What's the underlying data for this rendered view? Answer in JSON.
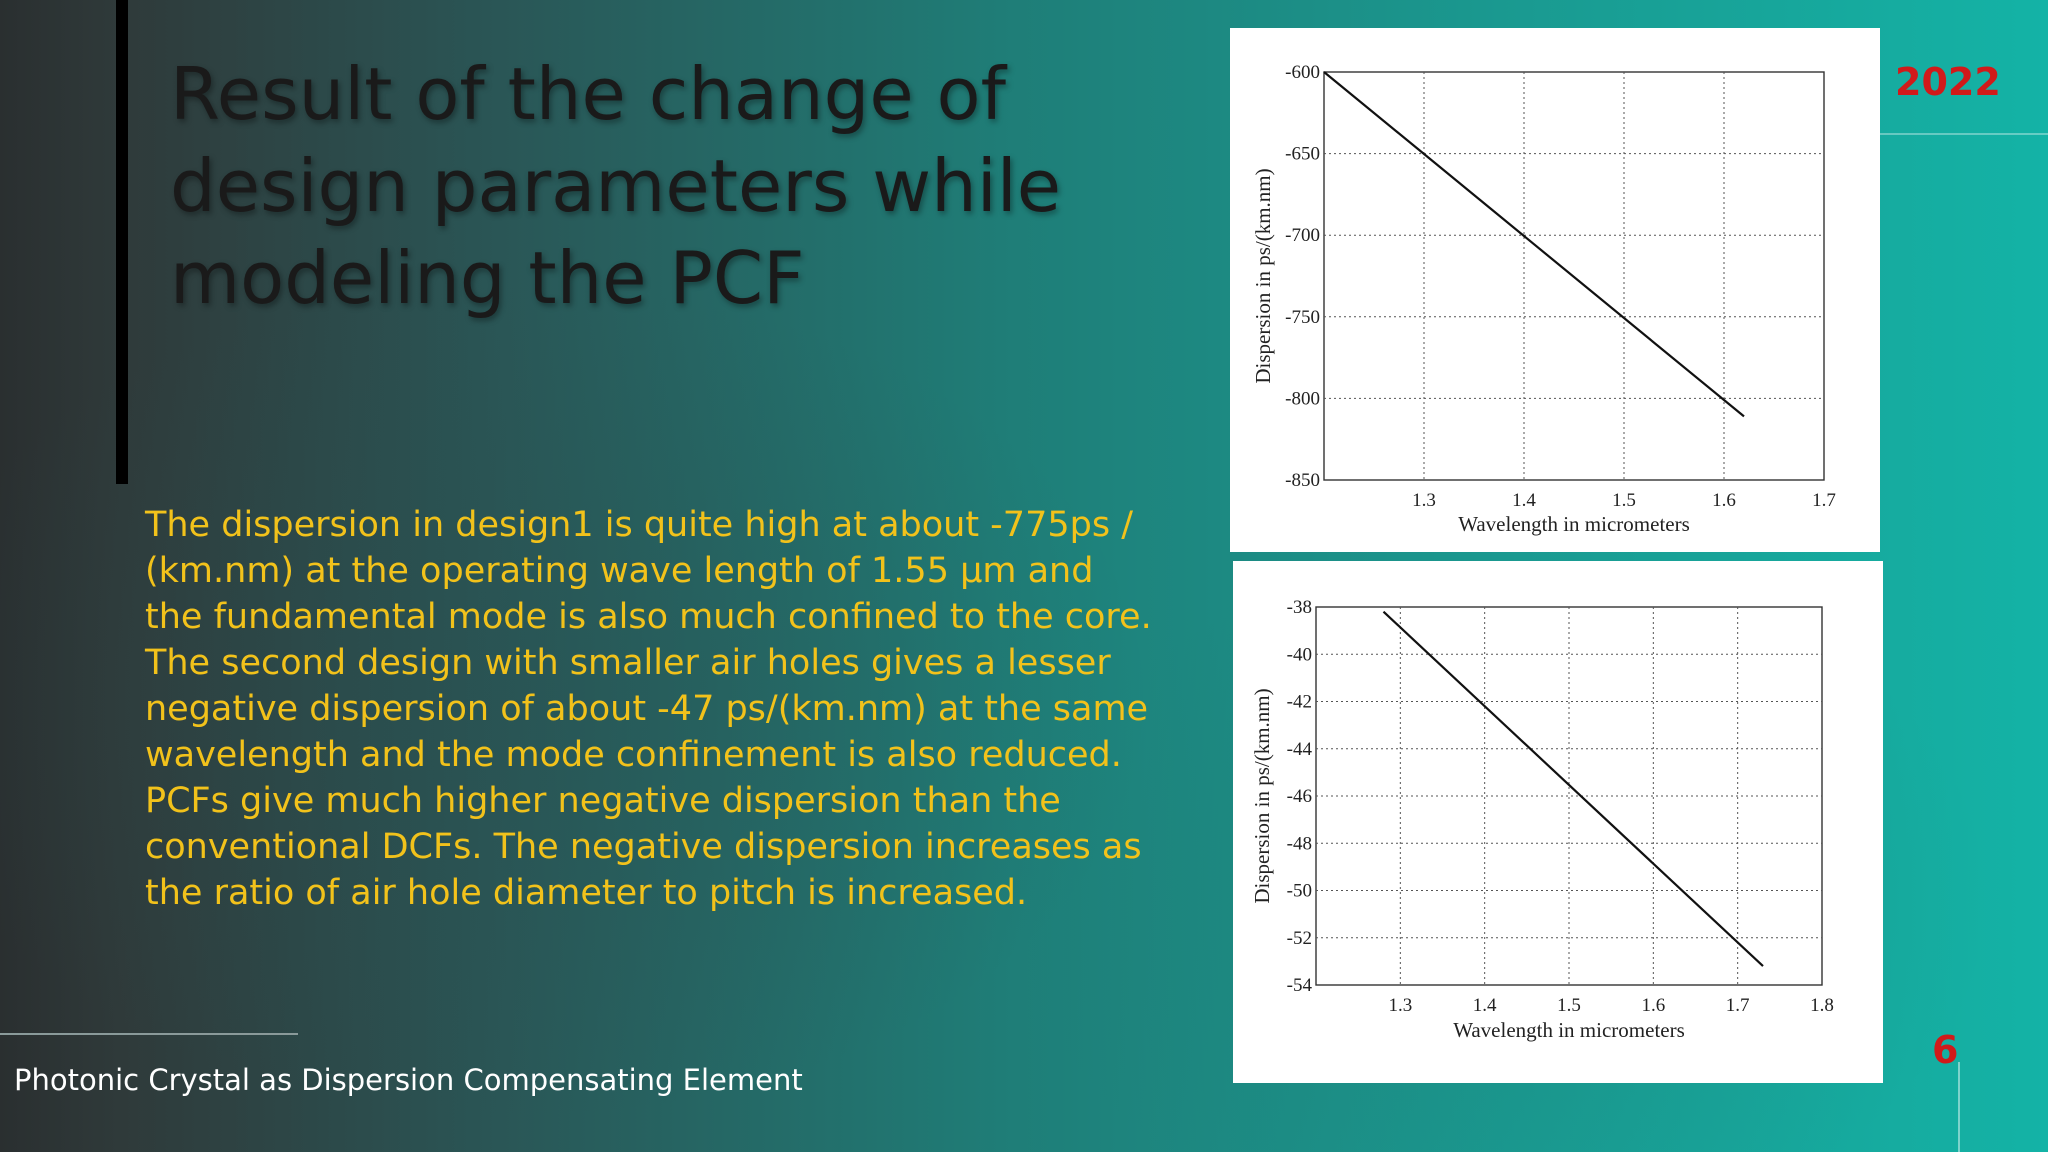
{
  "slide": {
    "title": "Result of the change of design parameters while modeling the PCF",
    "body": "The dispersion in design1 is quite high at about -775ps / (km.nm) at the operating wave length of 1.55 μm and the fundamental mode is also much confined to the core. The second design with smaller air holes gives a lesser negative dispersion of about -47 ps/(km.nm) at the same wavelength and the mode confinement is also reduced. PCFs give much higher negative dispersion than the conventional DCFs. The negative dispersion increases as the ratio of air hole diameter to pitch is increased.",
    "footer": "Photonic Crystal as Dispersion Compensating Element",
    "year": "2022",
    "page_number": "6"
  },
  "colors": {
    "body_text": "#f2c21b",
    "accent_red": "#d11a1a",
    "title_text": "#1a1a1a"
  },
  "chart_data": [
    {
      "type": "line",
      "xlabel": "Wavelength in micrometers",
      "ylabel": "Dispersion in ps/(km.nm)",
      "xlim": [
        1.2,
        1.7
      ],
      "ylim": [
        -850,
        -600
      ],
      "xticks": [
        "1.3",
        "1.4",
        "1.5",
        "1.6",
        "1.7"
      ],
      "yticks": [
        "-600",
        "-650",
        "-700",
        "-750",
        "-800",
        "-850"
      ],
      "grid": true,
      "series": [
        {
          "x": [
            1.2,
            1.62
          ],
          "y": [
            -600,
            -811
          ]
        }
      ]
    },
    {
      "type": "line",
      "xlabel": "Wavelength in micrometers",
      "ylabel": "Dispersion in ps/(km.nm)",
      "xlim": [
        1.2,
        1.8
      ],
      "ylim": [
        -54,
        -38
      ],
      "xticks": [
        "1.3",
        "1.4",
        "1.5",
        "1.6",
        "1.7",
        "1.8"
      ],
      "yticks": [
        "-38",
        "-40",
        "-42",
        "-44",
        "-46",
        "-48",
        "-50",
        "-52",
        "-54"
      ],
      "grid": true,
      "series": [
        {
          "x": [
            1.28,
            1.73
          ],
          "y": [
            -38.2,
            -53.2
          ]
        }
      ]
    }
  ]
}
